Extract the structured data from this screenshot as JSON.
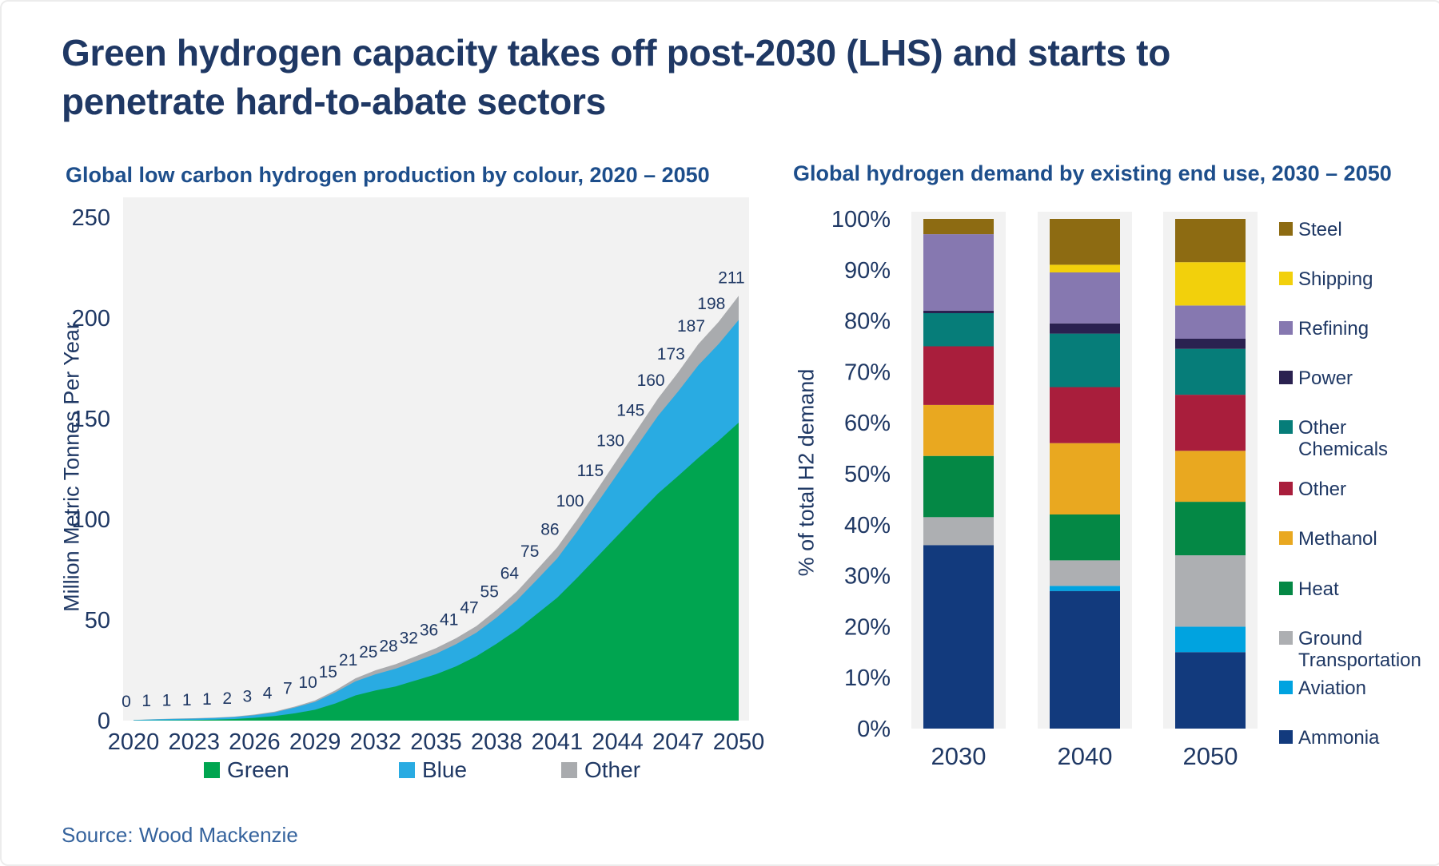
{
  "page": {
    "title_line1": "Green hydrogen capacity takes off post-2030 (LHS) and starts to",
    "title_line2": "penetrate hard-to-abate sectors",
    "source": "Source: Wood Mackenzie"
  },
  "colors": {
    "title": "#1f3864",
    "subtitle": "#1d4e8b",
    "axis_text": "#1f3864",
    "source_text": "#35639d",
    "plot_bg": "#f2f2f2"
  },
  "chart_data": [
    {
      "type": "area",
      "title": "Global low carbon hydrogen production by colour, 2020 – 2050",
      "ylabel": "Million Metric Tonnes Per Year",
      "xlabel": "",
      "ylim": [
        0,
        250
      ],
      "y_ticks": [
        0,
        50,
        100,
        150,
        200,
        250
      ],
      "x": [
        2020,
        2021,
        2022,
        2023,
        2024,
        2025,
        2026,
        2027,
        2028,
        2029,
        2030,
        2031,
        2032,
        2033,
        2034,
        2035,
        2036,
        2037,
        2038,
        2039,
        2040,
        2041,
        2042,
        2043,
        2044,
        2045,
        2046,
        2047,
        2048,
        2049,
        2050
      ],
      "x_ticks": [
        2020,
        2023,
        2026,
        2029,
        2032,
        2035,
        2038,
        2041,
        2044,
        2047,
        2050
      ],
      "series": [
        {
          "name": "Green",
          "color": "#00a550",
          "values": [
            0.05,
            0.1,
            0.2,
            0.3,
            0.5,
            0.8,
            1.4,
            2.3,
            3.6,
            5.4,
            8.5,
            12.5,
            15,
            17,
            20,
            23,
            27,
            32,
            38.2,
            45,
            53,
            61,
            71,
            81.5,
            92,
            102.5,
            112.8,
            121.5,
            130.5,
            139,
            148
          ]
        },
        {
          "name": "Blue",
          "color": "#29abe2",
          "values": [
            0.2,
            0.5,
            0.65,
            0.7,
            0.8,
            1.0,
            1.3,
            1.8,
            2.9,
            3.9,
            5.5,
            7,
            8,
            8.8,
            9.5,
            10.2,
            11,
            11.7,
            13,
            14.7,
            17,
            19.5,
            23,
            26.8,
            30.7,
            34.5,
            38.6,
            42,
            46,
            48,
            51
          ]
        },
        {
          "name": "Other",
          "color": "#a9abae",
          "values": [
            0.05,
            0.1,
            0.15,
            0.2,
            0.2,
            0.2,
            0.3,
            0.4,
            0.5,
            0.7,
            1.0,
            1.5,
            2,
            2.2,
            2.5,
            2.8,
            3,
            3.3,
            3.8,
            4.3,
            5,
            5.5,
            6,
            6.7,
            7.3,
            8,
            8.6,
            9.5,
            10.5,
            11,
            12
          ]
        }
      ],
      "total_labels": [
        0,
        1,
        1,
        1,
        1,
        2,
        3,
        4,
        7,
        10,
        15,
        21,
        25,
        28,
        32,
        36,
        41,
        47,
        55,
        64,
        75,
        86,
        100,
        115,
        130,
        145,
        160,
        173,
        187,
        198,
        211
      ],
      "legend_position": "bottom",
      "grid": false
    },
    {
      "type": "bar",
      "stacked": true,
      "title": "Global hydrogen demand by existing end use, 2030 – 2050",
      "ylabel": "% of total H2 demand",
      "xlabel": "",
      "ylim": [
        0,
        100
      ],
      "y_ticks": [
        "0%",
        "10%",
        "20%",
        "30%",
        "40%",
        "50%",
        "60%",
        "70%",
        "80%",
        "90%",
        "100%"
      ],
      "categories": [
        "2030",
        "2040",
        "2050"
      ],
      "series": [
        {
          "name": "Ammonia",
          "color": "#123a7d",
          "values": [
            36,
            27,
            15
          ]
        },
        {
          "name": "Aviation",
          "color": "#00a3e0",
          "values": [
            0,
            1,
            5
          ]
        },
        {
          "name": "Ground Transportation",
          "color": "#adafb2",
          "values": [
            5.5,
            5,
            14
          ]
        },
        {
          "name": "Heat",
          "color": "#048845",
          "values": [
            12,
            9,
            10.5
          ]
        },
        {
          "name": "Methanol",
          "color": "#e9a820",
          "values": [
            10,
            14,
            10
          ]
        },
        {
          "name": "Other",
          "color": "#a91e3c",
          "values": [
            11.5,
            11,
            11
          ]
        },
        {
          "name": "Other Chemicals",
          "color": "#067d79",
          "values": [
            6.5,
            10.5,
            9
          ]
        },
        {
          "name": "Power",
          "color": "#2a2150",
          "values": [
            0.5,
            2,
            2
          ]
        },
        {
          "name": "Refining",
          "color": "#8678b0",
          "values": [
            15,
            10,
            6.5
          ]
        },
        {
          "name": "Shipping",
          "color": "#f2d00c",
          "values": [
            0,
            1.5,
            8.5
          ]
        },
        {
          "name": "Steel",
          "color": "#8d6b12",
          "values": [
            3,
            9,
            8.5
          ]
        }
      ],
      "legend_position": "right",
      "grid": false
    }
  ]
}
